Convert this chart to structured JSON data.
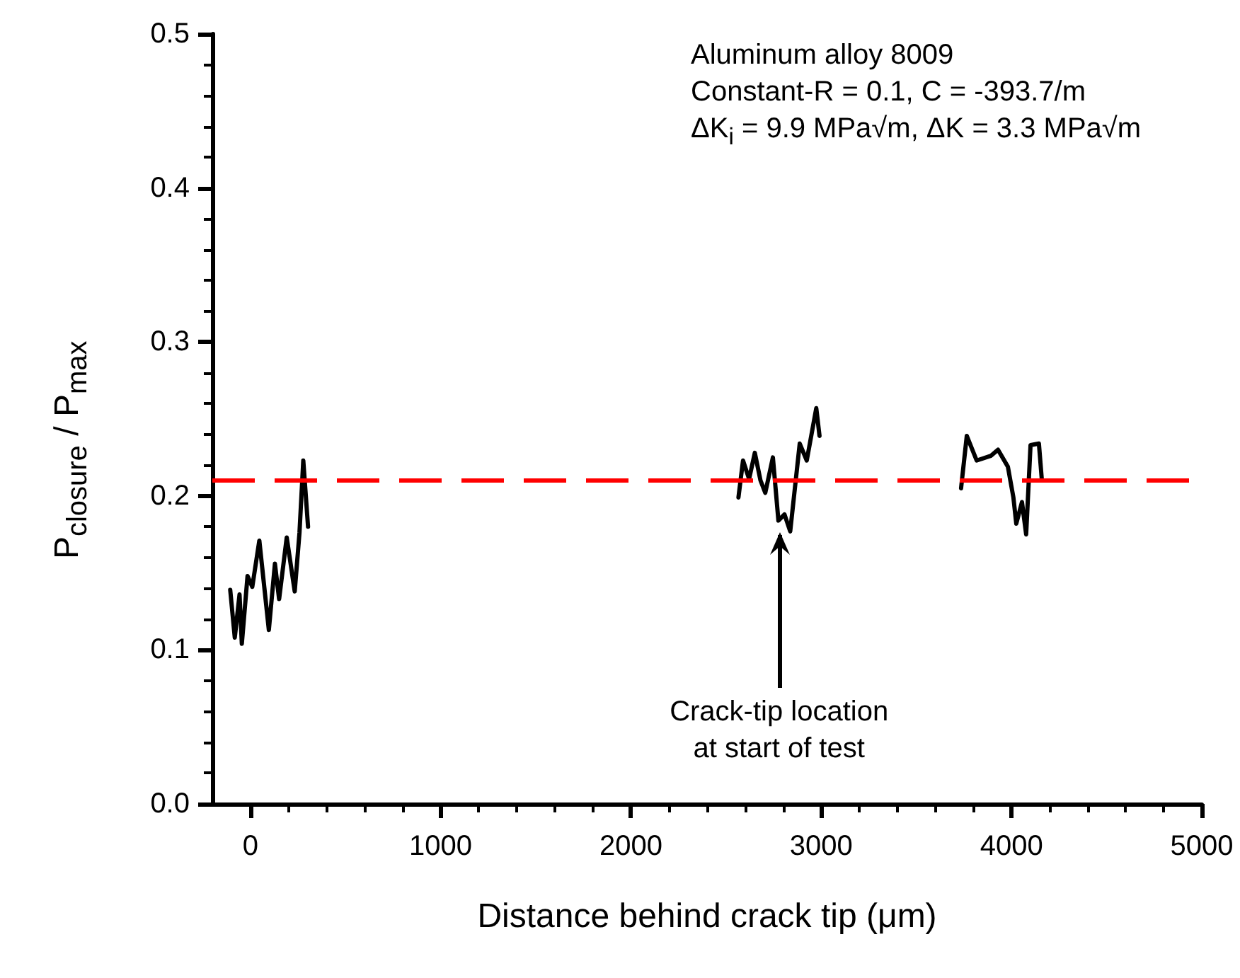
{
  "chart_data": {
    "type": "line",
    "xlabel": "Distance behind crack tip (μm)",
    "ylabel": "P$_{closure}$ / P$_{max}$",
    "xlim": [
      -200,
      5000
    ],
    "xticks": [
      0,
      1000,
      2000,
      3000,
      4000,
      5000
    ],
    "ylim": [
      0,
      0.5
    ],
    "yticks": [
      {
        "value": 0,
        "label": "0.0"
      },
      0.1,
      0.2,
      0.3,
      0.4,
      0.5
    ],
    "grid": false,
    "marker": "none",
    "line_style": "solid",
    "series": [
      {
        "color": "#000000",
        "x": [
          -106,
          -82,
          -57,
          -45,
          -15,
          10,
          47,
          97,
          129,
          151,
          191,
          233,
          258,
          278,
          303
        ],
        "values": [
          0.139,
          0.108,
          0.136,
          0.104,
          0.148,
          0.141,
          0.171,
          0.113,
          0.156,
          0.133,
          0.173,
          0.138,
          0.176,
          0.223,
          0.18
        ]
      },
      {
        "color": "#000000",
        "x": [
          2565,
          2589,
          2621,
          2651,
          2681,
          2706,
          2746,
          2775,
          2807,
          2837,
          2887,
          2924,
          2974,
          2991
        ],
        "values": [
          0.199,
          0.223,
          0.211,
          0.228,
          0.21,
          0.202,
          0.225,
          0.184,
          0.188,
          0.177,
          0.234,
          0.223,
          0.257,
          0.239
        ]
      },
      {
        "color": "#000000",
        "x": [
          3735,
          3765,
          3817,
          3891,
          3929,
          3981,
          4010,
          4025,
          4055,
          4077,
          4100,
          4144,
          4159
        ],
        "values": [
          0.205,
          0.239,
          0.223,
          0.226,
          0.23,
          0.219,
          0.199,
          0.182,
          0.196,
          0.175,
          0.233,
          0.234,
          0.211
        ]
      }
    ],
    "ref_lines": [
      {
        "axis": "y",
        "value": 0.21,
        "color": "#ff0000",
        "line_style": "dashed"
      }
    ],
    "annotations": [
      "Aluminum alloy 8009\nConstant-R = 0.1, C = -393.7/m\nΔK$_{i}$ = 9.9 MPa√m, ΔK = 3.3 MPa√m",
      {
        "text": "Crack-tip location\nat start of test",
        "x": 2780,
        "y": 0.18
      }
    ]
  }
}
